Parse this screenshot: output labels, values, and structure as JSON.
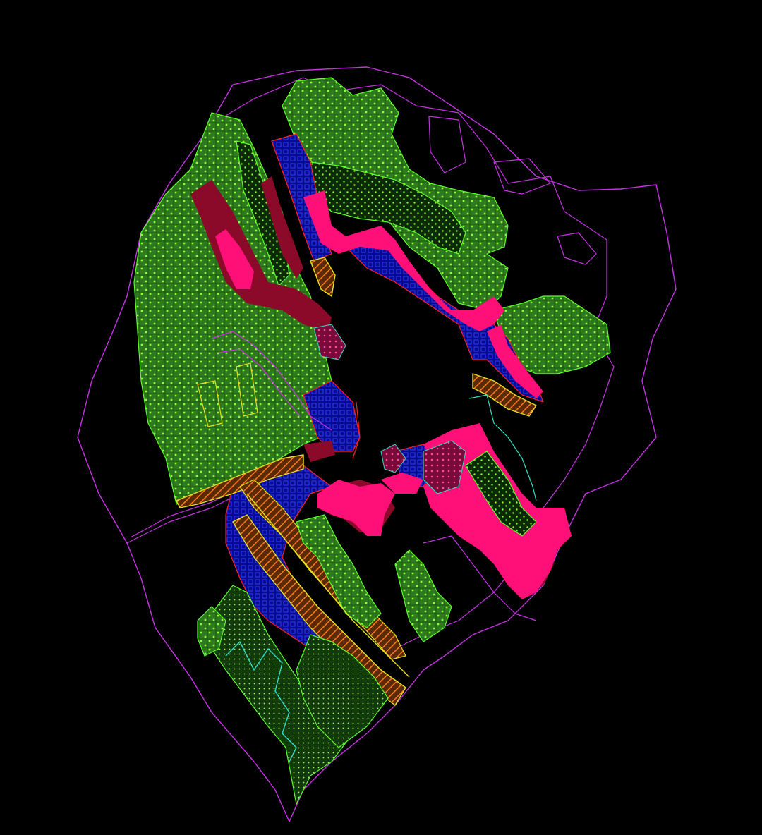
{
  "canvas": {
    "background": "#000000"
  },
  "colors": {
    "boundary": "#c832e6",
    "green_fill": "#2f7a1f",
    "green_hatch": "#8dff3c",
    "green_outline": "#5cff2a",
    "blue_fill": "#0a0a8c",
    "blue_hatch": "#2a3dff",
    "hot_pink": "#ff0f78",
    "maroon": "#8b0a2a",
    "orange_hatch": "#ff7a1a",
    "yellow_line": "#e8e020",
    "cyan_line": "#33e0c8",
    "red_line": "#ff2020"
  },
  "legend": []
}
